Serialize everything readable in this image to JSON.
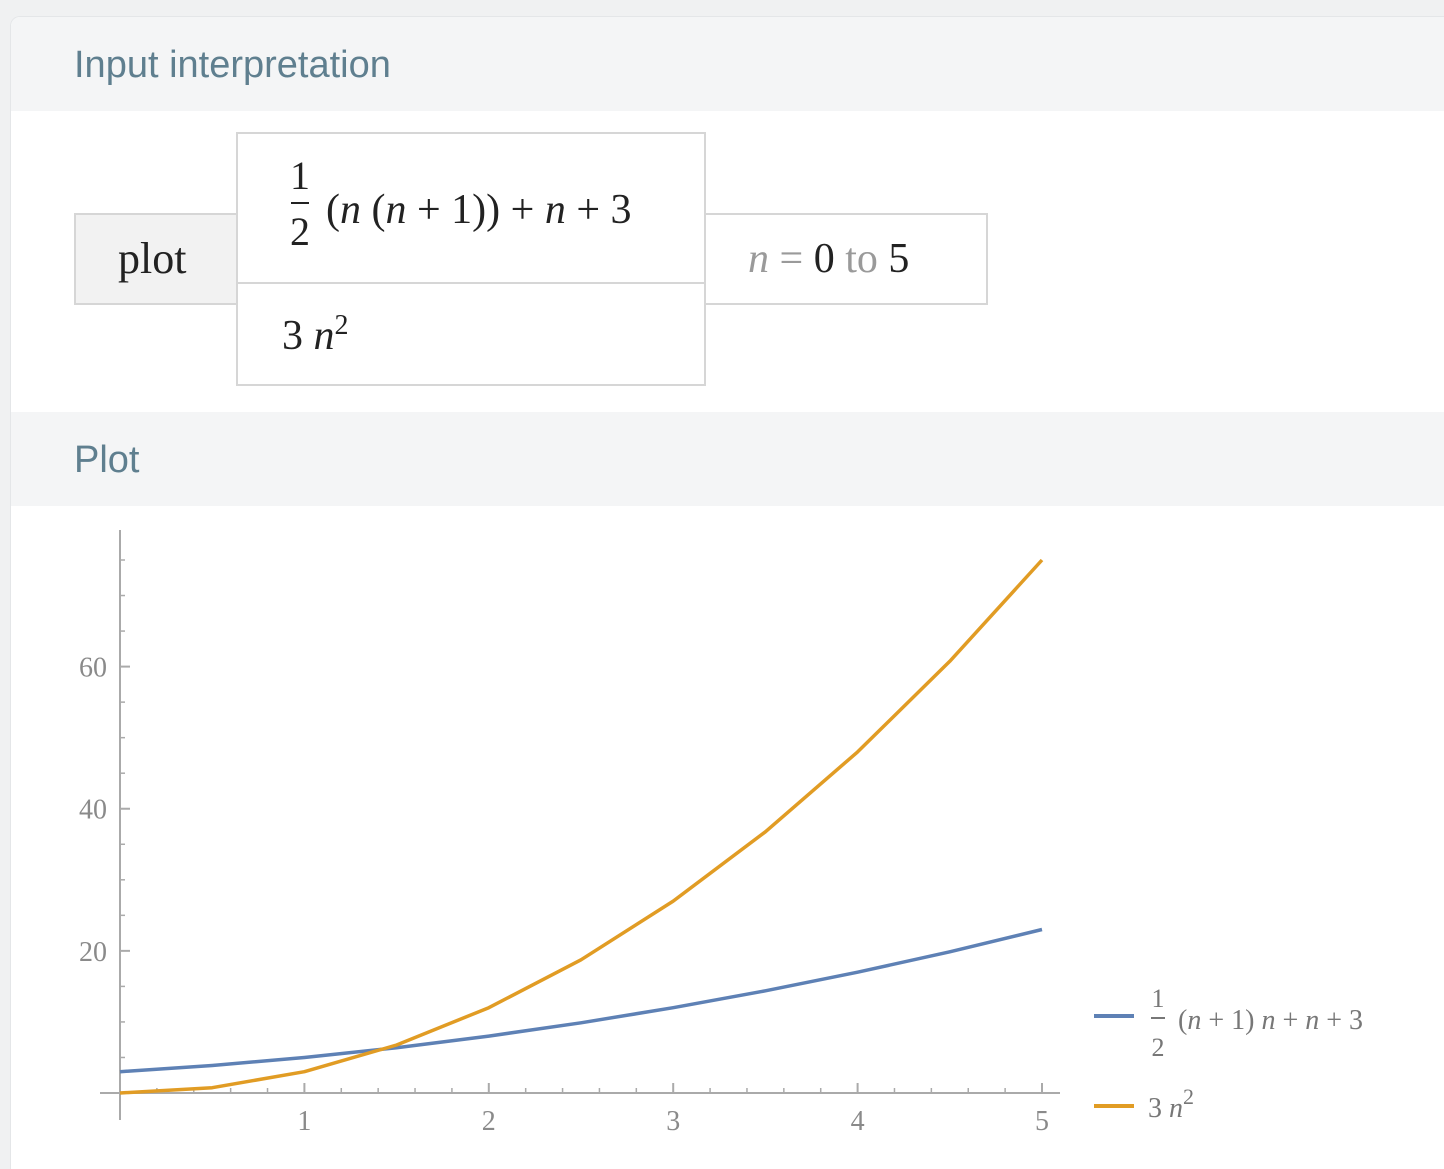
{
  "pods": {
    "input_title": "Input interpretation",
    "plot_title": "Plot"
  },
  "input": {
    "command": "plot",
    "expr1": {
      "frac_num": "1",
      "frac_den": "2",
      "p1": "(",
      "v1": "n",
      "p2": " (",
      "v2": "n",
      "p3": " + 1)) + ",
      "v3": "n",
      "p4": " + 3"
    },
    "expr2": {
      "coef": "3 ",
      "var": "n",
      "exp": "2"
    },
    "range": {
      "var": "n",
      "eq": " = ",
      "from": "0",
      "to_word": " to ",
      "to": "5"
    }
  },
  "chart_data": {
    "type": "line",
    "x_range": [
      0,
      5
    ],
    "ylim": [
      0,
      78
    ],
    "x_ticks": [
      1,
      2,
      3,
      4,
      5
    ],
    "y_ticks": [
      20,
      40,
      60
    ],
    "grid": false,
    "legend_position": "right",
    "series": [
      {
        "name": "1/2 (n+1) n+n+3",
        "color": "#5e81b5",
        "x": [
          0,
          0.5,
          1,
          1.5,
          2,
          2.5,
          3,
          3.5,
          4,
          4.5,
          5
        ],
        "y": [
          3,
          3.875,
          5,
          6.375,
          8,
          9.875,
          12,
          14.375,
          17,
          19.875,
          23
        ]
      },
      {
        "name": "3 n^2",
        "color": "#e19c24",
        "x": [
          0,
          0.5,
          1,
          1.5,
          2,
          2.5,
          3,
          3.5,
          4,
          4.5,
          5
        ],
        "y": [
          0,
          0.75,
          3,
          6.75,
          12,
          18.75,
          27,
          36.75,
          48,
          60.75,
          75
        ]
      }
    ],
    "legend": {
      "blue": {
        "frac_num": "1",
        "frac_den": "2",
        "text_a": "(",
        "var_a": "n",
        "text_b": " + 1) ",
        "var_b": "n",
        "text_c": " + ",
        "var_c": "n",
        "text_d": " + 3"
      },
      "orange": {
        "coef": "3 ",
        "var": "n",
        "exp": "2"
      }
    }
  }
}
